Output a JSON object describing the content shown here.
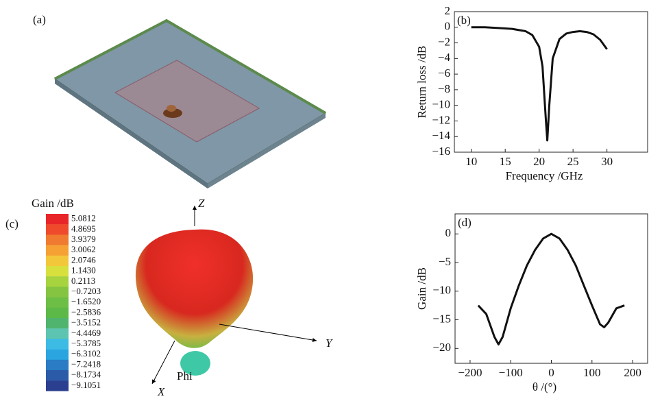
{
  "panels": {
    "a": "(a)",
    "c": "(c)"
  },
  "colorbar": {
    "title": "Gain /dB",
    "labels": [
      "5.0812",
      "4.8695",
      "3.9379",
      "3.0062",
      "2.0746",
      "1.1430",
      "0.2113",
      "−0.7203",
      "−1.6520",
      "−2.5836",
      "−3.5152",
      "−4.4469",
      "−5.3785",
      "−6.3102",
      "−7.2418",
      "−8.1734",
      "−9.1051"
    ],
    "colors": [
      "#e8262a",
      "#ee4a2b",
      "#f07a2f",
      "#f5a133",
      "#f3c73a",
      "#d7e03c",
      "#a6d33e",
      "#84c441",
      "#6dbe45",
      "#5cb948",
      "#50b46e",
      "#5cc4b0",
      "#3cbce4",
      "#2aa5e0",
      "#2a7cc4",
      "#2a5aa8",
      "#2a3f8f"
    ]
  },
  "pattern": {
    "axes": [
      "Z",
      "Y",
      "X"
    ],
    "label": "Phi"
  },
  "chart_data": [
    {
      "type": "line",
      "annotation": "(b)",
      "x_label": "Frequency /GHz",
      "y_label": "Return loss /dB",
      "x": [
        10,
        12,
        14,
        16,
        18,
        19,
        20,
        20.5,
        21,
        21.2,
        21.5,
        22,
        23,
        24,
        25,
        26,
        27,
        28,
        29,
        30
      ],
      "series": [
        {
          "color": "#111111",
          "values": [
            0,
            0,
            -0.1,
            -0.2,
            -0.5,
            -1,
            -2.5,
            -5,
            -12,
            -14.5,
            -10,
            -4,
            -1.5,
            -0.8,
            -0.6,
            -0.5,
            -0.6,
            -0.9,
            -1.6,
            -2.8
          ]
        }
      ],
      "xlim": [
        7.5,
        36
      ],
      "ylim": [
        -16,
        2
      ],
      "xticks": [
        10,
        15,
        20,
        25,
        30
      ],
      "yticks": [
        2,
        0,
        {
          "value": -2,
          "label": "−2"
        },
        {
          "value": -4,
          "label": "−4"
        },
        {
          "value": -6,
          "label": "−6"
        },
        {
          "value": -8,
          "label": "−8"
        },
        {
          "value": -10,
          "label": "−10"
        },
        {
          "value": -12,
          "label": "−12"
        },
        {
          "value": -14,
          "label": "−14"
        },
        {
          "value": -16,
          "label": "−16"
        }
      ]
    },
    {
      "type": "line",
      "annotation": "(d)",
      "x_label": "θ /(°)",
      "y_label": "Gain /dB",
      "x": [
        -180,
        -160,
        -140,
        -130,
        -120,
        -100,
        -80,
        -60,
        -40,
        -20,
        0,
        20,
        40,
        60,
        80,
        100,
        120,
        130,
        140,
        160,
        180
      ],
      "series": [
        {
          "color": "#111111",
          "values": [
            -12.5,
            -14,
            -18,
            -19.3,
            -18,
            -13,
            -9,
            -5.5,
            -2.8,
            -0.8,
            0,
            -0.8,
            -2.8,
            -5.5,
            -9,
            -12.5,
            -15.8,
            -16.3,
            -15.5,
            -13,
            -12.5
          ]
        }
      ],
      "xlim": [
        -237,
        237
      ],
      "ylim": [
        -22.6,
        3.5
      ],
      "xticks": [
        {
          "value": -200,
          "label": "−200"
        },
        {
          "value": -100,
          "label": "−100"
        },
        0,
        100,
        200
      ],
      "yticks": [
        0,
        {
          "value": -5,
          "label": "−5"
        },
        {
          "value": -10,
          "label": "−10"
        },
        {
          "value": -15,
          "label": "−15"
        },
        {
          "value": -20,
          "label": "−20"
        }
      ]
    }
  ]
}
